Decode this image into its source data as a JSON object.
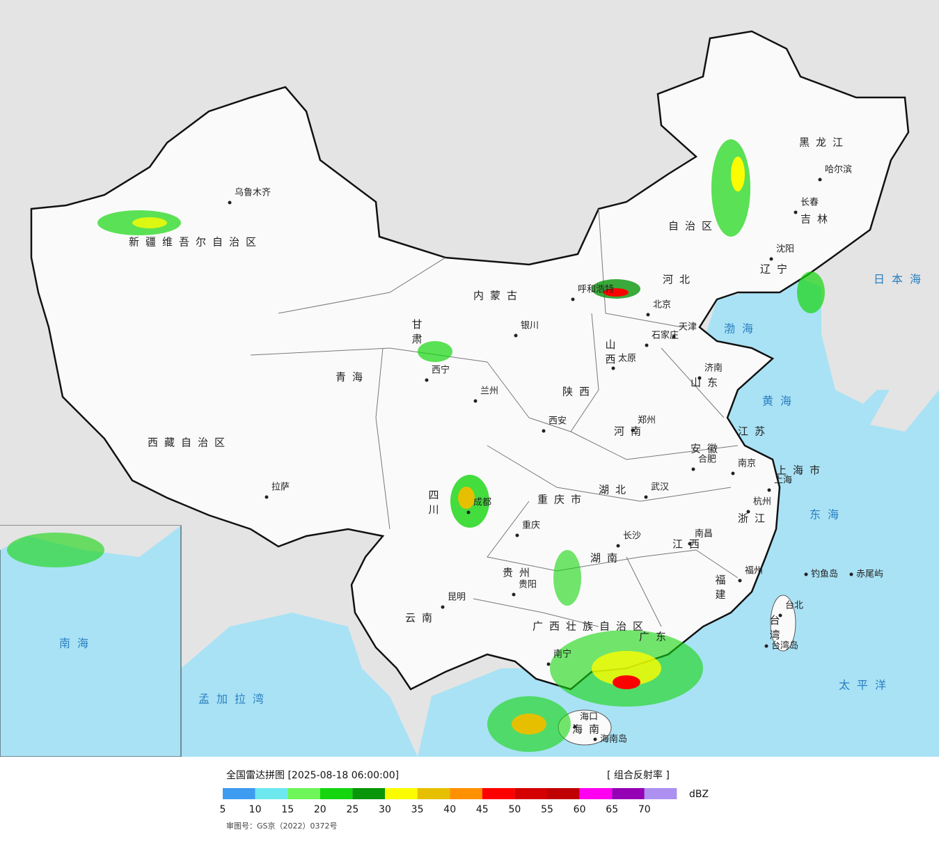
{
  "map": {
    "provinces": [
      "新疆维吾尔自治区",
      "西藏自治区",
      "青海",
      "甘肃",
      "内蒙古",
      "自治区",
      "黑龙江",
      "吉林",
      "辽宁",
      "河北",
      "山西",
      "山东",
      "陕西",
      "河南",
      "江苏",
      "安徽",
      "四川",
      "湖北",
      "浙江",
      "重庆市",
      "湖南",
      "江西",
      "福建",
      "贵州",
      "云南",
      "广西壮族自治区",
      "广东",
      "台湾",
      "海南",
      "上海市"
    ],
    "cities": [
      "乌鲁木齐",
      "拉萨",
      "西宁",
      "兰州",
      "银川",
      "呼和浩特",
      "北京",
      "天津",
      "石家庄",
      "太原",
      "济南",
      "郑州",
      "西安",
      "成都",
      "重庆",
      "武汉",
      "合肥",
      "南京",
      "上海",
      "杭州",
      "长沙",
      "南昌",
      "福州",
      "台北",
      "贵阳",
      "昆明",
      "南宁",
      "海口",
      "哈尔滨",
      "长春",
      "沈阳",
      "钓鱼岛",
      "赤尾屿",
      "台湾岛",
      "海南岛"
    ],
    "seas": [
      "日本海",
      "渤海",
      "黄海",
      "东海",
      "太平洋",
      "南海",
      "孟加拉湾"
    ]
  },
  "footer": {
    "title": "全国雷达拼图 [2025-08-18 06:00:00]",
    "product": "[ 组合反射率 ]",
    "unit": "dBZ",
    "approval": "审图号：GS京（2022）0372号"
  },
  "legend": {
    "colors": [
      "#3d9cf0",
      "#6de8ef",
      "#6df55a",
      "#15d60e",
      "#0a960a",
      "#fcfc00",
      "#e6c000",
      "#ff9000",
      "#ff0000",
      "#d40000",
      "#c00000",
      "#ff00f0",
      "#9600b4",
      "#ad90f0"
    ],
    "labels": [
      5,
      10,
      15,
      20,
      25,
      30,
      35,
      40,
      45,
      50,
      55,
      60,
      65,
      70
    ]
  }
}
